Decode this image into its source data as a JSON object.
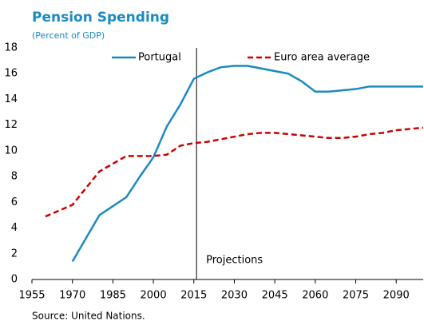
{
  "chart_data": {
    "type": "line",
    "title": "Pension Spending",
    "subtitle": "(Percent of GDP)",
    "x": [
      1960,
      1970,
      1980,
      1990,
      1995,
      2000,
      2005,
      2010,
      2015,
      2020,
      2025,
      2030,
      2035,
      2040,
      2045,
      2050,
      2055,
      2060,
      2065,
      2070,
      2075,
      2080,
      2085,
      2090,
      2095,
      2100
    ],
    "series": [
      {
        "name": "Portugal",
        "color": "#1a8ac0",
        "style": "solid",
        "values": [
          null,
          1.4,
          5.0,
          6.4,
          8.0,
          9.5,
          11.9,
          13.6,
          15.6,
          16.1,
          16.5,
          16.6,
          16.6,
          16.4,
          16.2,
          16.0,
          15.4,
          14.6,
          14.6,
          14.7,
          14.8,
          15.0,
          15.0,
          15.0,
          15.0,
          15.0
        ]
      },
      {
        "name": "Euro area average",
        "color": "#cc0000",
        "style": "dashed",
        "values": [
          4.9,
          5.8,
          8.4,
          9.6,
          9.6,
          9.6,
          9.7,
          10.4,
          10.6,
          10.7,
          10.9,
          11.1,
          11.3,
          11.4,
          11.4,
          11.3,
          11.2,
          11.1,
          11.0,
          11.0,
          11.1,
          11.3,
          11.4,
          11.6,
          11.7,
          11.8
        ]
      }
    ],
    "xlim": [
      1955,
      2100
    ],
    "xticks": [
      1955,
      1970,
      1985,
      2000,
      2015,
      2030,
      2045,
      2060,
      2075,
      2090
    ],
    "ylim": [
      0,
      18
    ],
    "yticks": [
      0,
      2,
      4,
      6,
      8,
      10,
      12,
      14,
      16,
      18
    ],
    "annotations": [
      {
        "x": 2016,
        "text": "Projections"
      }
    ],
    "source": "Source: United Nations."
  }
}
